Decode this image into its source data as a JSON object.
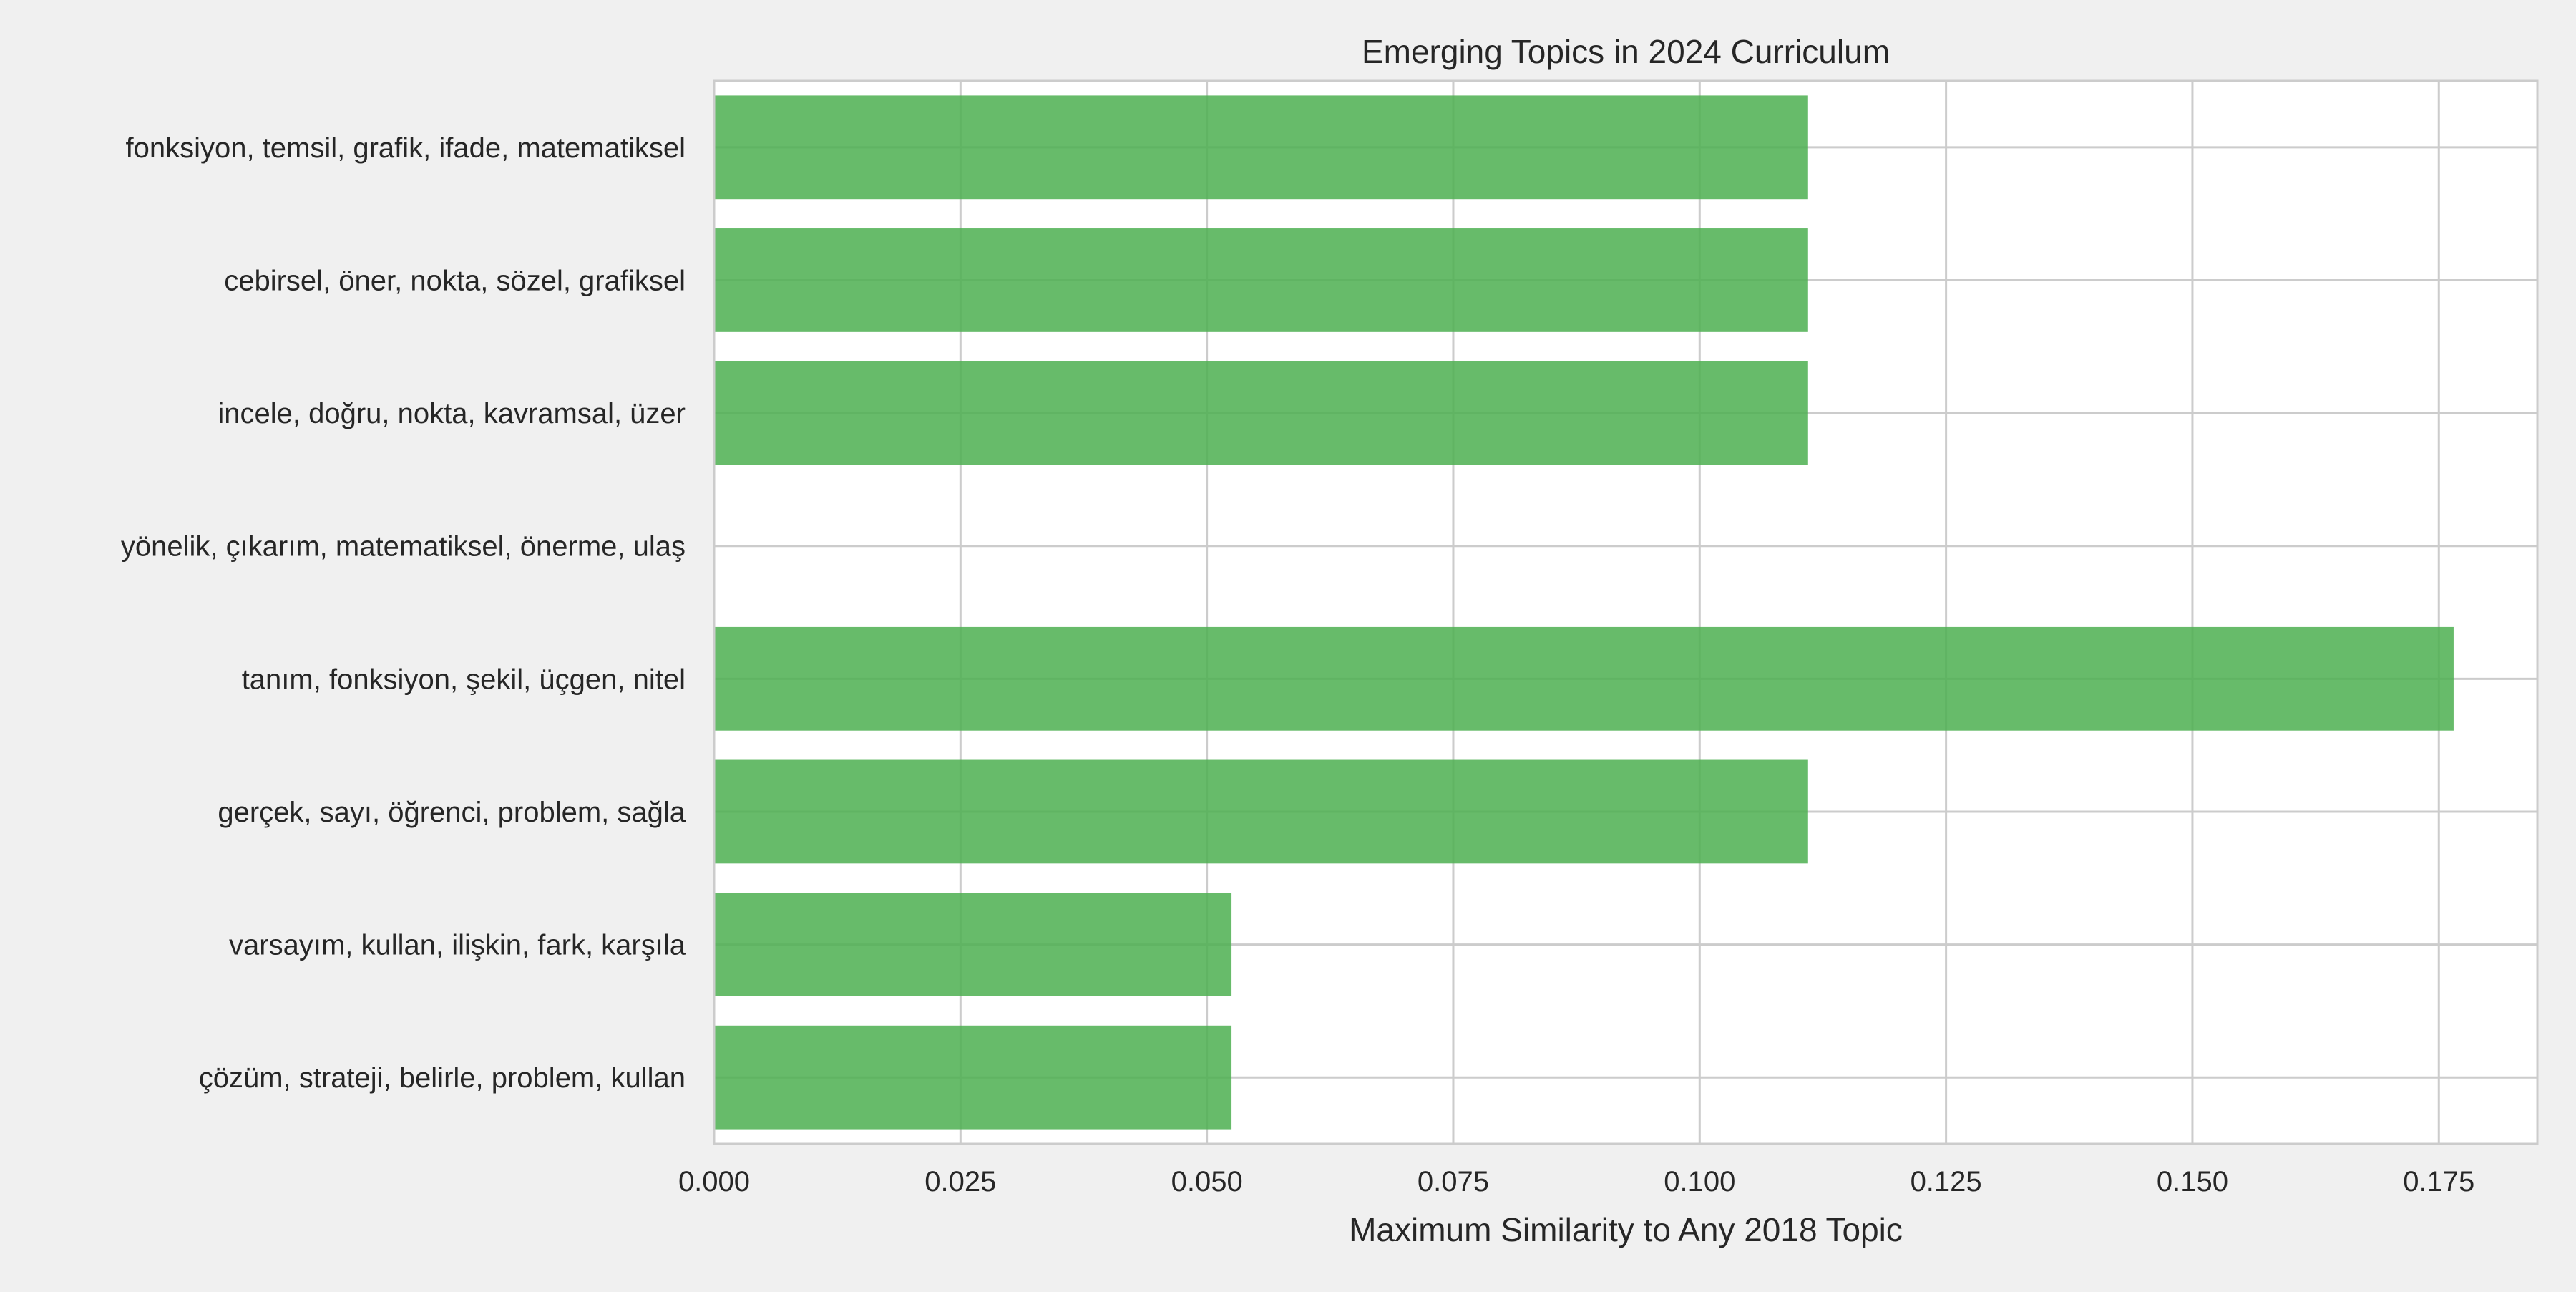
{
  "chart_data": {
    "type": "bar",
    "orientation": "horizontal",
    "title": "Emerging Topics in 2024 Curriculum",
    "xlabel": "Maximum Similarity to Any 2018 Topic",
    "ylabel": "",
    "xlim": [
      0,
      0.185
    ],
    "x_ticks": [
      "0.000",
      "0.025",
      "0.050",
      "0.075",
      "0.100",
      "0.125",
      "0.150",
      "0.175"
    ],
    "x_tick_values": [
      0,
      0.025,
      0.05,
      0.075,
      0.1,
      0.125,
      0.15,
      0.175
    ],
    "grid": true,
    "bar_color": "#4caf50",
    "categories": [
      "fonksiyon, temsil, grafik, ifade, matematiksel",
      "cebirsel, öner, nokta, sözel, grafiksel",
      "incele, doğru, nokta, kavramsal, üzer",
      "yönelik, çıkarım, matematiksel, önerme, ulaş",
      "tanım, fonksiyon, şekil, üçgen, nitel",
      "gerçek, sayı, öğrenci, problem, sağla",
      "varsayım, kullan, ilişkin, fark, karşıla",
      "çözüm, strateji, belirle, problem, kullan"
    ],
    "values": [
      0.111,
      0.111,
      0.111,
      0.0,
      0.1765,
      0.111,
      0.0525,
      0.0525
    ]
  }
}
